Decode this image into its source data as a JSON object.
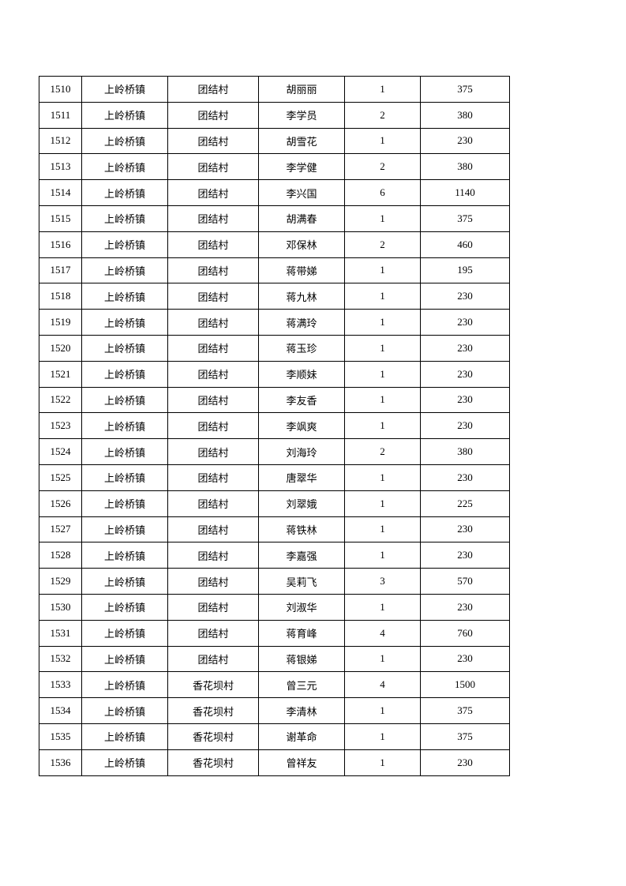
{
  "rows": [
    [
      "1510",
      "上岭桥镇",
      "团结村",
      "胡丽丽",
      "1",
      "375"
    ],
    [
      "1511",
      "上岭桥镇",
      "团结村",
      "李学员",
      "2",
      "380"
    ],
    [
      "1512",
      "上岭桥镇",
      "团结村",
      "胡雪花",
      "1",
      "230"
    ],
    [
      "1513",
      "上岭桥镇",
      "团结村",
      "李学健",
      "2",
      "380"
    ],
    [
      "1514",
      "上岭桥镇",
      "团结村",
      "李兴国",
      "6",
      "1140"
    ],
    [
      "1515",
      "上岭桥镇",
      "团结村",
      "胡满春",
      "1",
      "375"
    ],
    [
      "1516",
      "上岭桥镇",
      "团结村",
      "邓保林",
      "2",
      "460"
    ],
    [
      "1517",
      "上岭桥镇",
      "团结村",
      "蒋带娣",
      "1",
      "195"
    ],
    [
      "1518",
      "上岭桥镇",
      "团结村",
      "蒋九林",
      "1",
      "230"
    ],
    [
      "1519",
      "上岭桥镇",
      "团结村",
      "蒋满玲",
      "1",
      "230"
    ],
    [
      "1520",
      "上岭桥镇",
      "团结村",
      "蒋玉珍",
      "1",
      "230"
    ],
    [
      "1521",
      "上岭桥镇",
      "团结村",
      "李顺妹",
      "1",
      "230"
    ],
    [
      "1522",
      "上岭桥镇",
      "团结村",
      "李友香",
      "1",
      "230"
    ],
    [
      "1523",
      "上岭桥镇",
      "团结村",
      "李飒爽",
      "1",
      "230"
    ],
    [
      "1524",
      "上岭桥镇",
      "团结村",
      "刘海玲",
      "2",
      "380"
    ],
    [
      "1525",
      "上岭桥镇",
      "团结村",
      "唐翠华",
      "1",
      "230"
    ],
    [
      "1526",
      "上岭桥镇",
      "团结村",
      "刘翠娥",
      "1",
      "225"
    ],
    [
      "1527",
      "上岭桥镇",
      "团结村",
      "蒋铁林",
      "1",
      "230"
    ],
    [
      "1528",
      "上岭桥镇",
      "团结村",
      "李嘉强",
      "1",
      "230"
    ],
    [
      "1529",
      "上岭桥镇",
      "团结村",
      "吴莉飞",
      "3",
      "570"
    ],
    [
      "1530",
      "上岭桥镇",
      "团结村",
      "刘淑华",
      "1",
      "230"
    ],
    [
      "1531",
      "上岭桥镇",
      "团结村",
      "蒋育峰",
      "4",
      "760"
    ],
    [
      "1532",
      "上岭桥镇",
      "团结村",
      "蒋银娣",
      "1",
      "230"
    ],
    [
      "1533",
      "上岭桥镇",
      "香花坝村",
      "曾三元",
      "4",
      "1500"
    ],
    [
      "1534",
      "上岭桥镇",
      "香花坝村",
      "李清林",
      "1",
      "375"
    ],
    [
      "1535",
      "上岭桥镇",
      "香花坝村",
      "谢革命",
      "1",
      "375"
    ],
    [
      "1536",
      "上岭桥镇",
      "香花坝村",
      "曾祥友",
      "1",
      "230"
    ]
  ]
}
